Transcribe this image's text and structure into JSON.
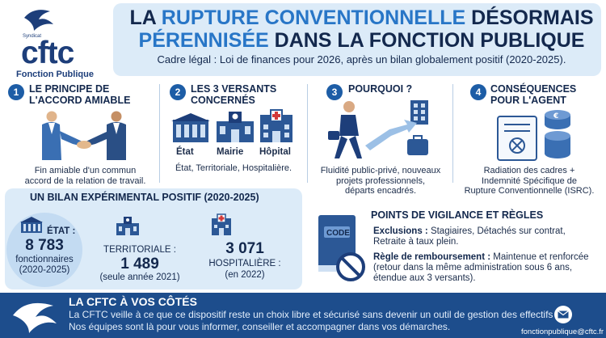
{
  "logo": {
    "syndicat": "Syndicat",
    "name": "cftc",
    "subtitle": "Fonction Publique"
  },
  "header": {
    "title_line1_prefix": "LA ",
    "title_line1_accent": "RUPTURE CONVENTIONNELLE",
    "title_line1_suffix": " DÉSORMAIS",
    "title_line2_accent": "PÉRENNISÉE",
    "title_line2_suffix": " DANS LA FONCTION PUBLIQUE",
    "subtitle": "Cadre légal : Loi de finances pour 2026, après un bilan globalement positif (2020-2025)."
  },
  "points": [
    {
      "number": "1",
      "title_line1": "LE PRINCIPE DE",
      "title_line2": "L'ACCORD AMIABLE",
      "desc_line1": "Fin amiable d'un commun",
      "desc_line2": "accord de la relation de travail.",
      "icon": "handshake-icon"
    },
    {
      "number": "2",
      "title_line1": "LES 3 VERSANTS",
      "title_line2": "CONCERNÉS",
      "building_labels": [
        "État",
        "Mairie",
        "Hôpital"
      ],
      "desc_line1": "État, Territoriale, Hospitalière.",
      "icon": "buildings-icon"
    },
    {
      "number": "3",
      "title_line1": "POURQUOI ?",
      "desc_line1": "Fluidité public-privé, nouveaux",
      "desc_line2": "projets professionnels,",
      "desc_line3": "départs encadrés.",
      "icon": "walking-man-icon"
    },
    {
      "number": "4",
      "title_line1": "CONSÉQUENCES",
      "title_line2": "POUR L'AGENT",
      "desc_line1": "Radiation des cadres +",
      "desc_line2": "Indemnité Spécifique de",
      "desc_line3": "Rupture Conventionnelle (ISRC).",
      "icon": "document-coins-icon"
    }
  ],
  "bilan": {
    "title": "UN BILAN EXPÉRIMENTAL POSITIF (2020-2025)",
    "etat": {
      "label": "ÉTAT :",
      "value": "8 783",
      "unit": "fonctionnaires",
      "period": "(2020-2025)"
    },
    "territoriale": {
      "label": "TERRITORIALE :",
      "value": "1 489",
      "period": "(seule année 2021)"
    },
    "hospitaliere": {
      "value": "3 071",
      "label": "HOSPITALIÈRE :",
      "period": "(en 2022)"
    }
  },
  "vigilance": {
    "title": "POINTS DE VIGILANCE ET RÈGLES",
    "book_label": "CODE",
    "exclusions_label": "Exclusions :",
    "exclusions_text1": " Stagiaires, Détachés sur contrat,",
    "exclusions_text2": "Retraite à taux plein.",
    "rembourse_label": "Règle de remboursement :",
    "rembourse_text1": " Maintenue et renforcée",
    "rembourse_text2": "(retour dans la même administration sous 6 ans,",
    "rembourse_text3": "étendue aux 3 versants)."
  },
  "footer": {
    "title": "LA CFTC À VOS CÔTÉS",
    "line1": "La CFTC veille à ce que ce dispositif reste un choix libre et sécurisé sans devenir un outil de gestion des effectifs",
    "line2": "Nos équipes sont là pour vous informer, conseiller et accompagner dans vos démarches.",
    "email": "fonctionpublique@cftc.fr"
  },
  "colors": {
    "navy": "#13284d",
    "accent_blue": "#2876c7",
    "badge_blue": "#1d5da6",
    "light_panel": "#dcebf8",
    "footer_blue": "#1d4d8c"
  }
}
